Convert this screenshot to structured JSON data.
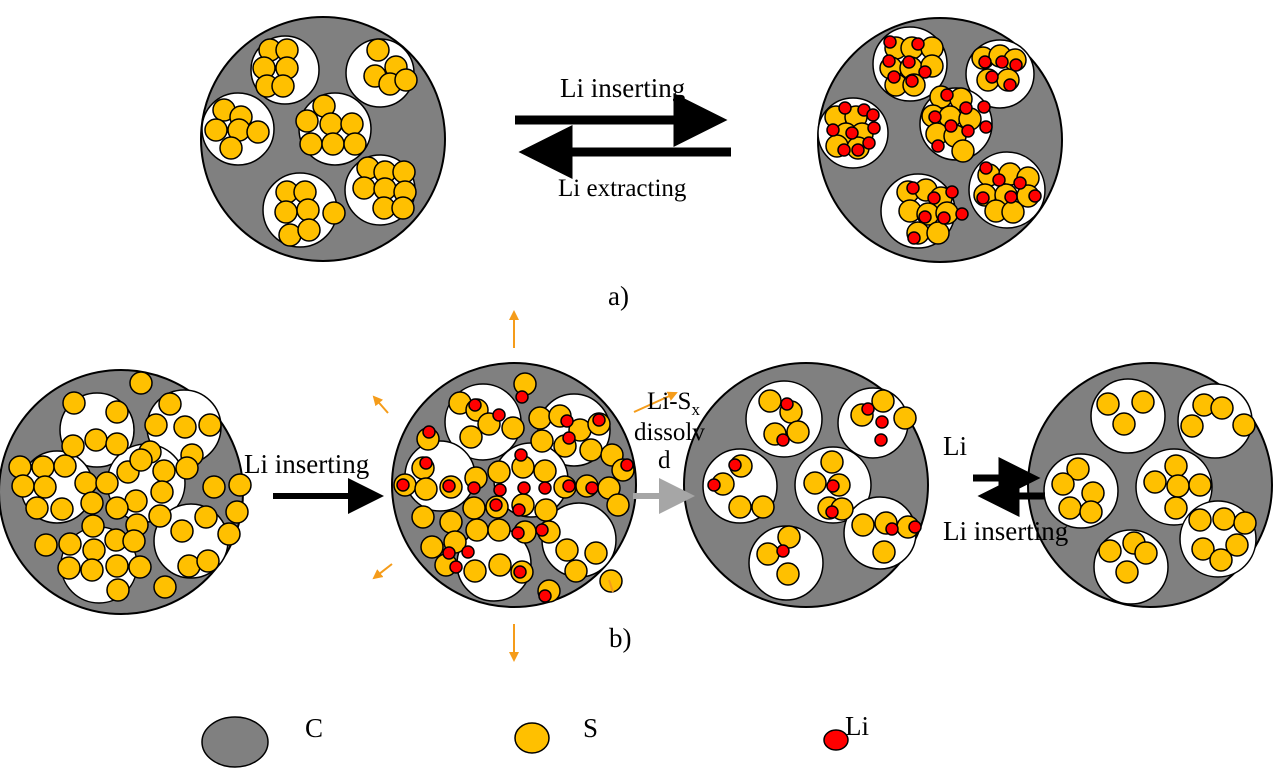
{
  "panel_a": {
    "label": "a)",
    "forward_arrow_label": "Li inserting",
    "reverse_arrow_label": "Li extracting"
  },
  "panel_b": {
    "label": "b)",
    "arrow1_label": "Li inserting",
    "arrow2_label_prefix": "Li-S",
    "arrow2_label_subscript": "x",
    "arrow2_label_line2": "dissolv",
    "arrow2_label_line3": "d",
    "arrow3_top_label": "Li",
    "arrow3_bottom_label": "Li inserting"
  },
  "legend": {
    "items": [
      {
        "name": "carbon",
        "label": "C",
        "color": "#808080"
      },
      {
        "name": "sulfur",
        "label": "S",
        "color": "#ffc000"
      },
      {
        "name": "lithium",
        "label": "Li",
        "color": "#ff0000"
      }
    ]
  },
  "colors": {
    "carbon": "#808080",
    "sulfur": "#ffc000",
    "lithium": "#ff0000",
    "pore": "#ffffff",
    "expansion_arrow": "#f59c1a",
    "dissolve_arrow": "#a6a6a6",
    "main_arrow": "#000000"
  }
}
